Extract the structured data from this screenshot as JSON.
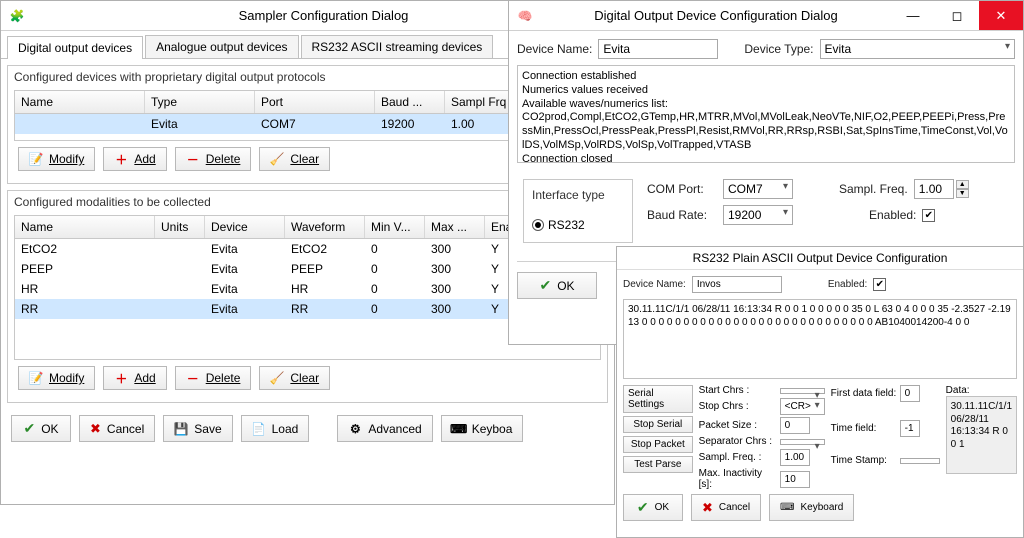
{
  "sampler": {
    "title": "Sampler Configuration Dialog",
    "tabs": [
      "Digital output devices",
      "Analogue output devices",
      "RS232 ASCII streaming devices"
    ],
    "devicesGroup": "Configured devices with proprietary digital output protocols",
    "devCols": {
      "name": "Name",
      "type": "Type",
      "port": "Port",
      "baud": "Baud ...",
      "freq": "Sampl Frq"
    },
    "devRow": {
      "name": "",
      "type": "Evita",
      "port": "COM7",
      "baud": "19200",
      "freq": "1.00"
    },
    "modGroup": "Configured modalities to be collected",
    "modCols": {
      "name": "Name",
      "units": "Units",
      "device": "Device",
      "wave": "Waveform",
      "min": "Min V...",
      "max": "Max ...",
      "enabled": "Enabled"
    },
    "modRows": [
      {
        "name": "EtCO2",
        "units": "",
        "device": "Evita",
        "wave": "EtCO2",
        "min": "0",
        "max": "300",
        "enabled": "Y"
      },
      {
        "name": "PEEP",
        "units": "",
        "device": "Evita",
        "wave": "PEEP",
        "min": "0",
        "max": "300",
        "enabled": "Y"
      },
      {
        "name": "HR",
        "units": "",
        "device": "Evita",
        "wave": "HR",
        "min": "0",
        "max": "300",
        "enabled": "Y"
      },
      {
        "name": "RR",
        "units": "",
        "device": "Evita",
        "wave": "RR",
        "min": "0",
        "max": "300",
        "enabled": "Y"
      }
    ],
    "btns": {
      "modify": "Modify",
      "add": "Add",
      "delete": "Delete",
      "clear": "Clear",
      "ok": "OK",
      "cancel": "Cancel",
      "save": "Save",
      "load": "Load",
      "advanced": "Advanced",
      "keyboard": "Keyboa"
    }
  },
  "digital": {
    "title": "Digital Output Device Configuration Dialog",
    "devNameLbl": "Device Name:",
    "devName": "Evita",
    "devTypeLbl": "Device Type:",
    "devType": "Evita",
    "log": "Connection established\nNumerics values received\nAvailable waves/numerics list:\nCO2prod,Compl,EtCO2,GTemp,HR,MTRR,MVol,MVolLeak,NeoVTe,NIF,O2,PEEP,PEEPi,Press,PressMin,PressOcl,PressPeak,PressPl,Resist,RMVol,RR,RRsp,RSBI,Sat,SpInsTime,TimeConst,Vol,VolDS,VolMSp,VolRDS,VolSp,VolTrapped,VTASB\nConnection closed",
    "ifaceGroup": "Interface type",
    "rs232": "RS232",
    "comPortLbl": "COM Port:",
    "comPort": "COM7",
    "baudLbl": "Baud Rate:",
    "baud": "19200",
    "sampLbl": "Sampl. Freq.",
    "samp": "1.00",
    "enabledLbl": "Enabled:",
    "ok": "OK"
  },
  "ascii": {
    "title": "RS232 Plain ASCII Output Device Configuration",
    "devNameLbl": "Device Name:",
    "devName": "Invos",
    "enabledLbl": "Enabled:",
    "raw": "30.11.11C/1/1  06/28/11  16:13:34  R  0 0 1  0 0 0 0 0  35    0  L 63  0 4 0 0 0  35  -2.3527  -2.1913  0 0  0 0 0 0 0 0       0 0 0 0 0       0 0 0 0 0 0 0 0 0 0 0 0     0     0  0 AB1040014200-4  0 0",
    "btns": {
      "serial": "Serial Settings",
      "stopSerial": "Stop Serial",
      "stopPacket": "Stop Packet",
      "testParse": "Test Parse",
      "ok": "OK",
      "cancel": "Cancel",
      "keyboard": "Keyboard"
    },
    "lbls": {
      "startChrs": "Start Chrs :",
      "stopChrs": "Stop Chrs :",
      "packetSize": "Packet Size :",
      "sepChrs": "Separator Chrs :",
      "sampFreq": "Sampl. Freq. :",
      "maxInact": "Max. Inactivity [s]:",
      "firstField": "First data field:",
      "timeField": "Time field:",
      "timeStamp": "Time Stamp:",
      "data": "Data:"
    },
    "vals": {
      "startChrs": "",
      "stopChrs": "<CR>",
      "packetSize": "0",
      "sepChrs": "",
      "sampFreq": "1.00",
      "maxInact": "10",
      "firstField": "0",
      "timeField": "-1"
    },
    "dataLines": [
      "30.11.11C/1/1",
      "06/28/11",
      "16:13:34",
      "R",
      "0",
      "0",
      "1"
    ]
  }
}
